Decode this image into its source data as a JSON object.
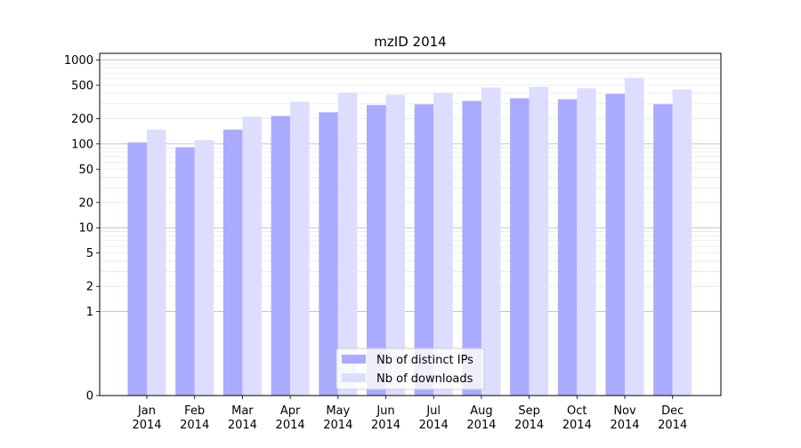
{
  "chart_data": {
    "type": "bar",
    "title": "mzID 2014",
    "xlabel": "",
    "ylabel": "",
    "yscale": "symlog",
    "ylim": [
      0,
      1200
    ],
    "yticks": [
      0,
      1,
      2,
      5,
      10,
      20,
      50,
      100,
      200,
      500,
      1000
    ],
    "grid": true,
    "legend_position": "lower center",
    "categories": [
      [
        "Jan",
        "2014"
      ],
      [
        "Feb",
        "2014"
      ],
      [
        "Mar",
        "2014"
      ],
      [
        "Apr",
        "2014"
      ],
      [
        "May",
        "2014"
      ],
      [
        "Jun",
        "2014"
      ],
      [
        "Jul",
        "2014"
      ],
      [
        "Aug",
        "2014"
      ],
      [
        "Sep",
        "2014"
      ],
      [
        "Oct",
        "2014"
      ],
      [
        "Nov",
        "2014"
      ],
      [
        "Dec",
        "2014"
      ]
    ],
    "series": [
      {
        "name": "Nb of distinct IPs",
        "color": "#aaaaff",
        "values": [
          104,
          91,
          148,
          215,
          238,
          290,
          296,
          325,
          350,
          340,
          395,
          297
        ]
      },
      {
        "name": "Nb of downloads",
        "color": "#ddddff",
        "values": [
          148,
          111,
          211,
          318,
          409,
          385,
          408,
          470,
          478,
          460,
          613,
          445
        ]
      }
    ]
  }
}
